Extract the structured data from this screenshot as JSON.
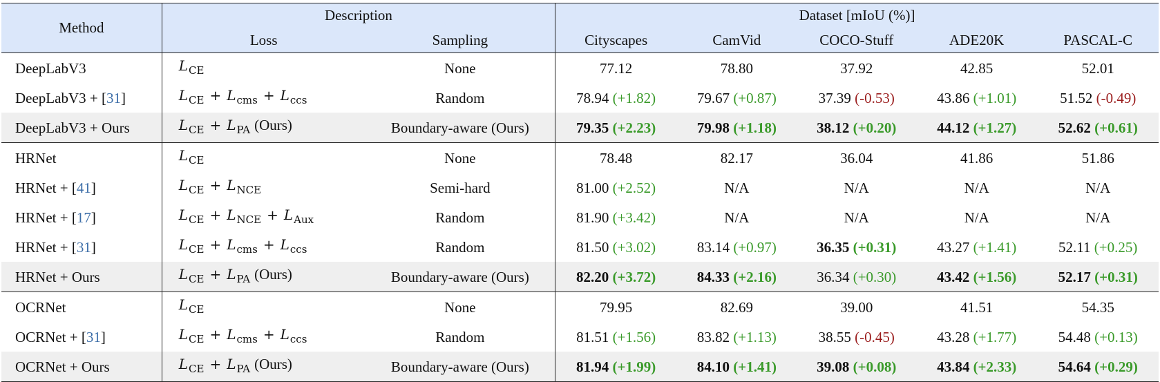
{
  "header": {
    "method": "Method",
    "description": "Description",
    "dataset": "Dataset [mIoU (%)]",
    "loss": "Loss",
    "sampling": "Sampling",
    "datasets": [
      "Cityscapes",
      "CamVid",
      "COCO-Stuff",
      "ADE20K",
      "PASCAL-C"
    ]
  },
  "groups": [
    {
      "rows": [
        {
          "method": "DeepLabV3",
          "ref": "",
          "loss": [
            [
              "CE"
            ]
          ],
          "ours": false,
          "sampling": "None",
          "values": [
            {
              "v": "77.12"
            },
            {
              "v": "78.80"
            },
            {
              "v": "37.92"
            },
            {
              "v": "42.85"
            },
            {
              "v": "52.01"
            }
          ]
        },
        {
          "method": "DeepLabV3 + [",
          "ref": "31",
          "loss": [
            [
              "CE"
            ],
            [
              "cms"
            ],
            [
              "ccs"
            ]
          ],
          "ours": false,
          "sampling": "Random",
          "values": [
            {
              "v": "78.94",
              "d": "(+1.82)"
            },
            {
              "v": "79.67",
              "d": "(+0.87)"
            },
            {
              "v": "37.39",
              "d": "(-0.53)"
            },
            {
              "v": "43.86",
              "d": "(+1.01)"
            },
            {
              "v": "51.52",
              "d": "(-0.49)"
            }
          ]
        },
        {
          "method": "DeepLabV3 + Ours",
          "ref": "",
          "loss": [
            [
              "CE"
            ],
            [
              "PA"
            ]
          ],
          "ours": true,
          "sampling": "Boundary-aware (Ours)",
          "highlight": true,
          "values": [
            {
              "v": "79.35",
              "d": "(+2.23)",
              "b": true
            },
            {
              "v": "79.98",
              "d": "(+1.18)",
              "b": true
            },
            {
              "v": "38.12",
              "d": "(+0.20)",
              "b": true
            },
            {
              "v": "44.12",
              "d": "(+1.27)",
              "b": true
            },
            {
              "v": "52.62",
              "d": "(+0.61)",
              "b": true
            }
          ]
        }
      ]
    },
    {
      "rows": [
        {
          "method": "HRNet",
          "ref": "",
          "loss": [
            [
              "CE"
            ]
          ],
          "ours": false,
          "sampling": "None",
          "values": [
            {
              "v": "78.48"
            },
            {
              "v": "82.17"
            },
            {
              "v": "36.04"
            },
            {
              "v": "41.86"
            },
            {
              "v": "51.86"
            }
          ]
        },
        {
          "method": "HRNet + [",
          "ref": "41",
          "loss": [
            [
              "CE"
            ],
            [
              "NCE"
            ]
          ],
          "ours": false,
          "sampling": "Semi-hard",
          "values": [
            {
              "v": "81.00",
              "d": "(+2.52)"
            },
            {
              "v": "N/A"
            },
            {
              "v": "N/A"
            },
            {
              "v": "N/A"
            },
            {
              "v": "N/A"
            }
          ]
        },
        {
          "method": "HRNet + [",
          "ref": "17",
          "loss": [
            [
              "CE"
            ],
            [
              "NCE"
            ],
            [
              "Aux"
            ]
          ],
          "ours": false,
          "sampling": "Random",
          "values": [
            {
              "v": "81.90",
              "d": "(+3.42)"
            },
            {
              "v": "N/A"
            },
            {
              "v": "N/A"
            },
            {
              "v": "N/A"
            },
            {
              "v": "N/A"
            }
          ]
        },
        {
          "method": "HRNet + [",
          "ref": "31",
          "loss": [
            [
              "CE"
            ],
            [
              "cms"
            ],
            [
              "ccs"
            ]
          ],
          "ours": false,
          "sampling": "Random",
          "values": [
            {
              "v": "81.50",
              "d": "(+3.02)"
            },
            {
              "v": "83.14",
              "d": "(+0.97)"
            },
            {
              "v": "36.35",
              "d": "(+0.31)",
              "b": true
            },
            {
              "v": "43.27",
              "d": "(+1.41)"
            },
            {
              "v": "52.11",
              "d": "(+0.25)"
            }
          ]
        },
        {
          "method": "HRNet + Ours",
          "ref": "",
          "loss": [
            [
              "CE"
            ],
            [
              "PA"
            ]
          ],
          "ours": true,
          "sampling": "Boundary-aware (Ours)",
          "highlight": true,
          "values": [
            {
              "v": "82.20",
              "d": "(+3.72)",
              "b": true
            },
            {
              "v": "84.33",
              "d": "(+2.16)",
              "b": true
            },
            {
              "v": "36.34",
              "d": "(+0.30)"
            },
            {
              "v": "43.42",
              "d": "(+1.56)",
              "b": true
            },
            {
              "v": "52.17",
              "d": "(+0.31)",
              "b": true
            }
          ]
        }
      ]
    },
    {
      "rows": [
        {
          "method": "OCRNet",
          "ref": "",
          "loss": [
            [
              "CE"
            ]
          ],
          "ours": false,
          "sampling": "None",
          "values": [
            {
              "v": "79.95"
            },
            {
              "v": "82.69"
            },
            {
              "v": "39.00"
            },
            {
              "v": "41.51"
            },
            {
              "v": "54.35"
            }
          ]
        },
        {
          "method": "OCRNet + [",
          "ref": "31",
          "loss": [
            [
              "CE"
            ],
            [
              "cms"
            ],
            [
              "ccs"
            ]
          ],
          "ours": false,
          "sampling": "Random",
          "values": [
            {
              "v": "81.51",
              "d": "(+1.56)"
            },
            {
              "v": "83.82",
              "d": "(+1.13)"
            },
            {
              "v": "38.55",
              "d": "(-0.45)"
            },
            {
              "v": "43.28",
              "d": "(+1.77)"
            },
            {
              "v": "54.48",
              "d": "(+0.13)"
            }
          ]
        },
        {
          "method": "OCRNet + Ours",
          "ref": "",
          "loss": [
            [
              "CE"
            ],
            [
              "PA"
            ]
          ],
          "ours": true,
          "sampling": "Boundary-aware (Ours)",
          "highlight": true,
          "values": [
            {
              "v": "81.94",
              "d": "(+1.99)",
              "b": true
            },
            {
              "v": "84.10",
              "d": "(+1.41)",
              "b": true
            },
            {
              "v": "39.08",
              "d": "(+0.08)",
              "b": true
            },
            {
              "v": "43.84",
              "d": "(+2.33)",
              "b": true
            },
            {
              "v": "54.64",
              "d": "(+0.29)",
              "b": true
            }
          ]
        }
      ]
    }
  ],
  "symbols": {
    "loss_letter": "L",
    "plus": "+",
    "ours_tag": "(Ours)",
    "ref_close": "]"
  }
}
